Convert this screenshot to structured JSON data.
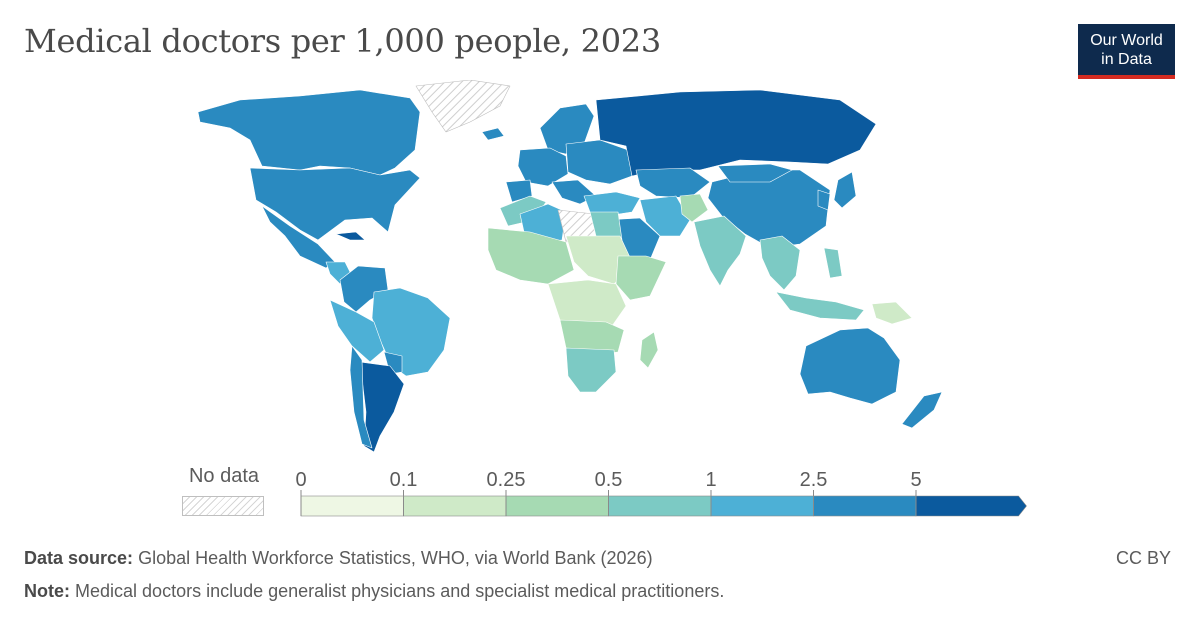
{
  "title": "Medical doctors per 1,000 people, 2023",
  "logo": {
    "line1": "Our World",
    "line2": "in Data"
  },
  "legend": {
    "no_data_label": "No data",
    "ticks": [
      "0",
      "0.1",
      "0.25",
      "0.5",
      "1",
      "2.5",
      "5"
    ],
    "colors": [
      "#eef7e4",
      "#cfeac8",
      "#a6dab3",
      "#7ccac4",
      "#4db0d6",
      "#2a8ac0",
      "#0b5a9e"
    ]
  },
  "footer": {
    "source_label": "Data source:",
    "source_text": "Global Health Workforce Statistics, WHO, via World Bank (2026)",
    "note_label": "Note:",
    "note_text": "Medical doctors include generalist physicians and specialist medical practitioners.",
    "license": "CC BY"
  },
  "map_data": {
    "type": "choropleth",
    "metric": "Medical doctors per 1,000 people",
    "regions": [
      {
        "id": "canada",
        "class": 5
      },
      {
        "id": "usa",
        "class": 5
      },
      {
        "id": "mexico",
        "class": 5
      },
      {
        "id": "central-america",
        "class": 4
      },
      {
        "id": "cuba",
        "class": 6
      },
      {
        "id": "colombia-venezuela",
        "class": 5
      },
      {
        "id": "brazil",
        "class": 4
      },
      {
        "id": "peru-bolivia",
        "class": 4
      },
      {
        "id": "paraguay",
        "class": 5
      },
      {
        "id": "argentina",
        "class": 6
      },
      {
        "id": "chile",
        "class": 5
      },
      {
        "id": "greenland",
        "class": "nodata"
      },
      {
        "id": "iceland",
        "class": 5
      },
      {
        "id": "scandinavia",
        "class": 5
      },
      {
        "id": "western-europe",
        "class": 5
      },
      {
        "id": "iberia",
        "class": 5
      },
      {
        "id": "italy-greece",
        "class": 5
      },
      {
        "id": "eastern-europe",
        "class": 5
      },
      {
        "id": "russia",
        "class": 6
      },
      {
        "id": "kazakhstan",
        "class": 5
      },
      {
        "id": "china",
        "class": 5
      },
      {
        "id": "mongolia",
        "class": 5
      },
      {
        "id": "japan",
        "class": 5
      },
      {
        "id": "korea",
        "class": 5
      },
      {
        "id": "middle-east",
        "class": 4
      },
      {
        "id": "saudi-arabia",
        "class": 5
      },
      {
        "id": "iran",
        "class": 4
      },
      {
        "id": "afghanistan",
        "class": 2
      },
      {
        "id": "india",
        "class": 3
      },
      {
        "id": "southeast-asia",
        "class": 3
      },
      {
        "id": "indonesia",
        "class": 3
      },
      {
        "id": "png",
        "class": 1
      },
      {
        "id": "philippines",
        "class": 3
      },
      {
        "id": "australia",
        "class": 5
      },
      {
        "id": "new-zealand",
        "class": 5
      },
      {
        "id": "maghreb",
        "class": 3
      },
      {
        "id": "algeria",
        "class": 4
      },
      {
        "id": "libya",
        "class": "nodata"
      },
      {
        "id": "egypt",
        "class": 3
      },
      {
        "id": "sahel-west",
        "class": 2
      },
      {
        "id": "chad-sudan",
        "class": 1
      },
      {
        "id": "horn-of-africa",
        "class": 2
      },
      {
        "id": "central-africa",
        "class": 1
      },
      {
        "id": "angola-zambia",
        "class": 2
      },
      {
        "id": "southern-africa",
        "class": 3
      },
      {
        "id": "madagascar",
        "class": 2
      }
    ]
  }
}
